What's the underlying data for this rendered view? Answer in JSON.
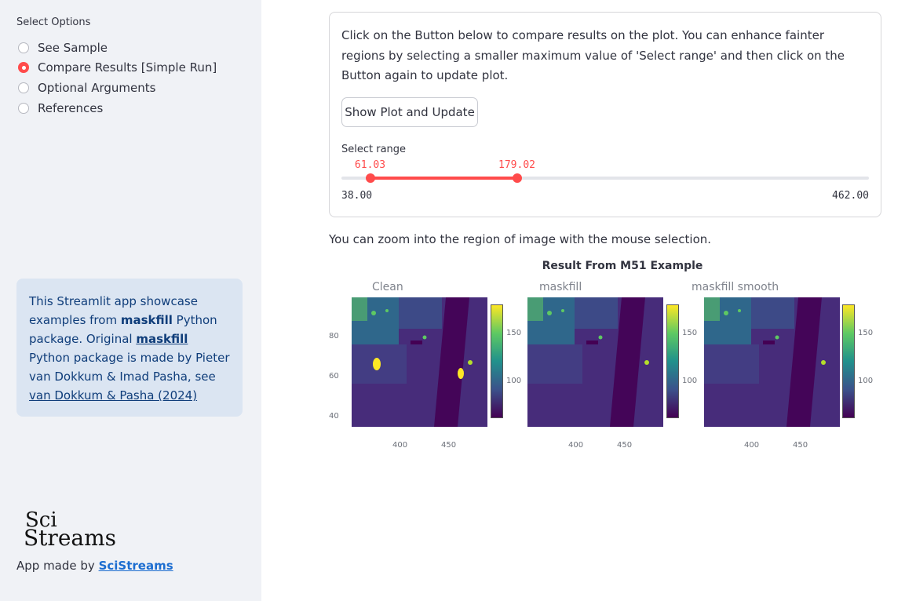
{
  "sidebar": {
    "title": "Select Options",
    "options": [
      "See Sample",
      "Compare Results [Simple Run]",
      "Optional Arguments",
      "References"
    ],
    "selected_index": 1,
    "info": {
      "t1": "This Streamlit app showcase examples from ",
      "pkg1": "maskfill",
      "t2": " Python package. Original ",
      "pkg2": "maskfill",
      "t3": " Python package is made by Pieter van Dokkum & Imad Pasha, see ",
      "ref": "van Dokkum & Pasha (2024)"
    },
    "logo_line1": "Sci",
    "logo_line2": "Streams",
    "made_by_text": "App made by ",
    "made_by_link": "SciStreams"
  },
  "card": {
    "text": "Click on the Button below to compare results on the plot. You can enhance fainter regions by selecting a smaller maximum value of 'Select range' and then click on the Button again to update plot.",
    "button_label": "Show Plot and Update",
    "slider": {
      "label": "Select range",
      "min": 38.0,
      "max": 462.0,
      "low": 61.03,
      "high": 179.02,
      "min_text": "38.00",
      "max_text": "462.00",
      "low_text": "61.03",
      "high_text": "179.02"
    }
  },
  "zoom_note": "You can zoom into the region of image with the mouse selection.",
  "chart_data": {
    "type": "heatmap",
    "title": "Result From M51 Example",
    "colormap": "viridis",
    "panels": [
      "Clean",
      "maskfill",
      "maskfill smooth"
    ],
    "x_ticks": [
      "400",
      "450"
    ],
    "y_ticks": [
      "40",
      "60",
      "80"
    ],
    "colorbar_ticks": [
      "100",
      "150"
    ]
  }
}
